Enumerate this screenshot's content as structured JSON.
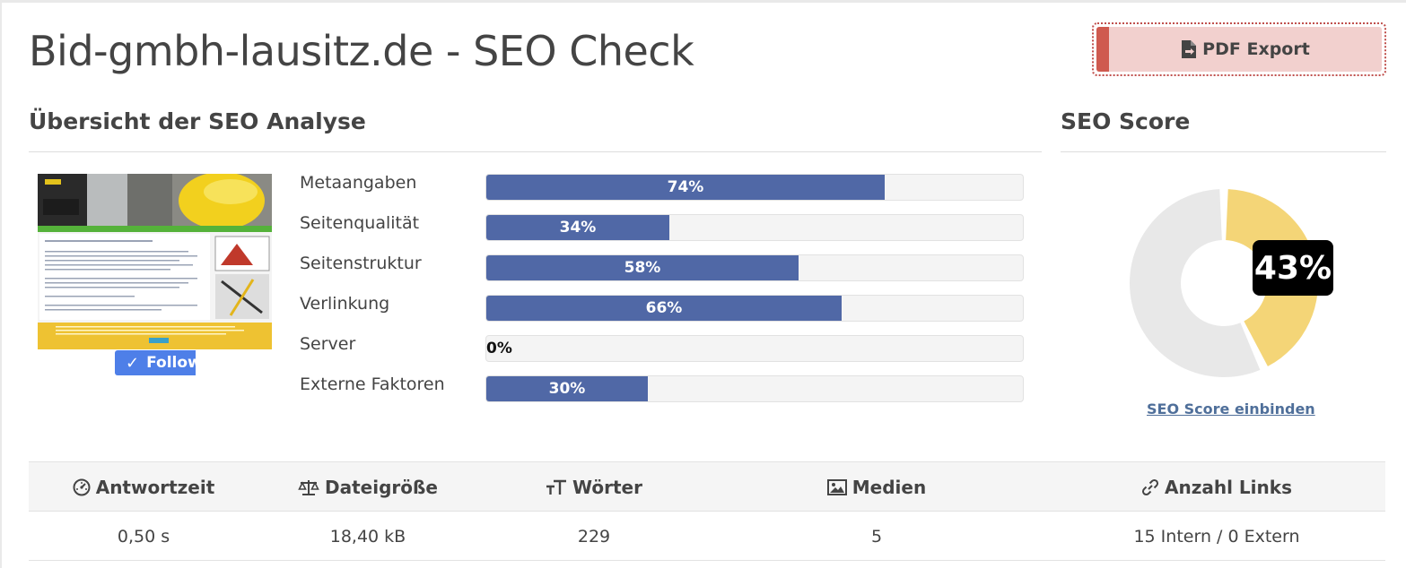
{
  "page": {
    "title": "Bid-gmbh-lausitz.de - SEO Check",
    "pdf_button": "PDF Export"
  },
  "overview": {
    "heading": "Übersicht der SEO Analyse",
    "follow_label": "Follow",
    "bars": [
      {
        "label": "Metaangaben",
        "value": 74,
        "text": "74%"
      },
      {
        "label": "Seitenqualität",
        "value": 34,
        "text": "34%"
      },
      {
        "label": "Seitenstruktur",
        "value": 58,
        "text": "58%"
      },
      {
        "label": "Verlinkung",
        "value": 66,
        "text": "66%"
      },
      {
        "label": "Server",
        "value": 0,
        "text": "0%"
      },
      {
        "label": "Externe Faktoren",
        "value": 30,
        "text": "30%"
      }
    ],
    "bar_color": "#5068a6"
  },
  "score": {
    "heading": "SEO Score",
    "value": 43,
    "text": "43%",
    "fill_color": "#f4d577",
    "rest_color": "#e8e8e8",
    "embed_link": "SEO Score einbinden"
  },
  "stats": {
    "columns": [
      {
        "icon": "speedometer-icon",
        "label": "Antwortzeit",
        "value": "0,50 s"
      },
      {
        "icon": "scale-icon",
        "label": "Dateigröße",
        "value": "18,40 kB"
      },
      {
        "icon": "text-size-icon",
        "label": "Wörter",
        "value": "229"
      },
      {
        "icon": "image-icon",
        "label": "Medien",
        "value": "5"
      },
      {
        "icon": "link-icon",
        "label": "Anzahl Links",
        "value": "15 Intern / 0 Extern"
      }
    ]
  }
}
